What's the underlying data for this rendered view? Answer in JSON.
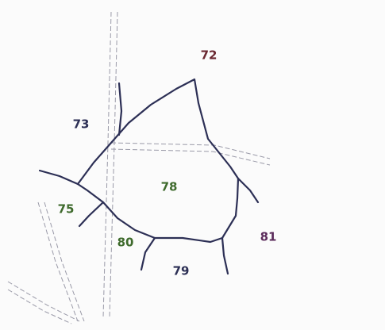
{
  "parcels": [
    "72",
    "73",
    "78",
    "75",
    "80",
    "81",
    "79"
  ]
}
